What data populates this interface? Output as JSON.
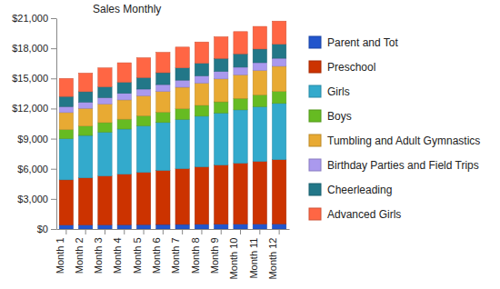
{
  "chart_data": {
    "type": "bar",
    "title": "Sales Monthly",
    "stacked": true,
    "grid": false,
    "legend": "right",
    "categories": [
      "Month 1",
      "Month 2",
      "Month 3",
      "Month 4",
      "Month 5",
      "Month 6",
      "Month 7",
      "Month 8",
      "Month 9",
      "Month 10",
      "Month 11",
      "Month 12"
    ],
    "ylim": [
      0,
      21000
    ],
    "yticks": [
      {
        "value": 0,
        "label": "$0"
      },
      {
        "value": 3000,
        "label": "$3,000"
      },
      {
        "value": 6000,
        "label": "$6,000"
      },
      {
        "value": 9000,
        "label": "$9,000"
      },
      {
        "value": 12000,
        "label": "$12,000"
      },
      {
        "value": 15000,
        "label": "$15,000"
      },
      {
        "value": 18000,
        "label": "$18,000"
      },
      {
        "value": 21000,
        "label": "$21,000"
      }
    ],
    "series": [
      {
        "name": "Parent and Tot",
        "color": "#2255cc",
        "values": [
          400,
          410,
          420,
          430,
          440,
          450,
          460,
          470,
          480,
          490,
          500,
          510
        ]
      },
      {
        "name": "Preschool",
        "color": "#cc3300",
        "values": [
          4500,
          4680,
          4860,
          5030,
          5200,
          5380,
          5550,
          5720,
          5890,
          6060,
          6230,
          6400
        ]
      },
      {
        "name": "Girls",
        "color": "#33aacc",
        "values": [
          4100,
          4230,
          4370,
          4500,
          4640,
          4780,
          4910,
          5050,
          5190,
          5320,
          5460,
          5600
        ]
      },
      {
        "name": "Boys",
        "color": "#66bb22",
        "values": [
          900,
          930,
          950,
          980,
          1000,
          1030,
          1060,
          1080,
          1110,
          1140,
          1170,
          1200
        ]
      },
      {
        "name": "Tumbling and Adult Gymnastics",
        "color": "#e8aa33",
        "values": [
          1700,
          1770,
          1850,
          1920,
          1990,
          2060,
          2140,
          2210,
          2280,
          2350,
          2430,
          2500
        ]
      },
      {
        "name": "Birthday Parties and Field Trips",
        "color": "#aa99ee",
        "values": [
          600,
          620,
          640,
          650,
          670,
          690,
          710,
          730,
          750,
          760,
          780,
          800
        ]
      },
      {
        "name": "Cheerleading",
        "color": "#227788",
        "values": [
          1000,
          1040,
          1070,
          1110,
          1140,
          1180,
          1220,
          1250,
          1290,
          1330,
          1360,
          1400
        ]
      },
      {
        "name": "Advanced Girls",
        "color": "#ff6644",
        "values": [
          1800,
          1850,
          1890,
          1940,
          1980,
          2030,
          2070,
          2120,
          2160,
          2210,
          2250,
          2300
        ]
      }
    ]
  }
}
